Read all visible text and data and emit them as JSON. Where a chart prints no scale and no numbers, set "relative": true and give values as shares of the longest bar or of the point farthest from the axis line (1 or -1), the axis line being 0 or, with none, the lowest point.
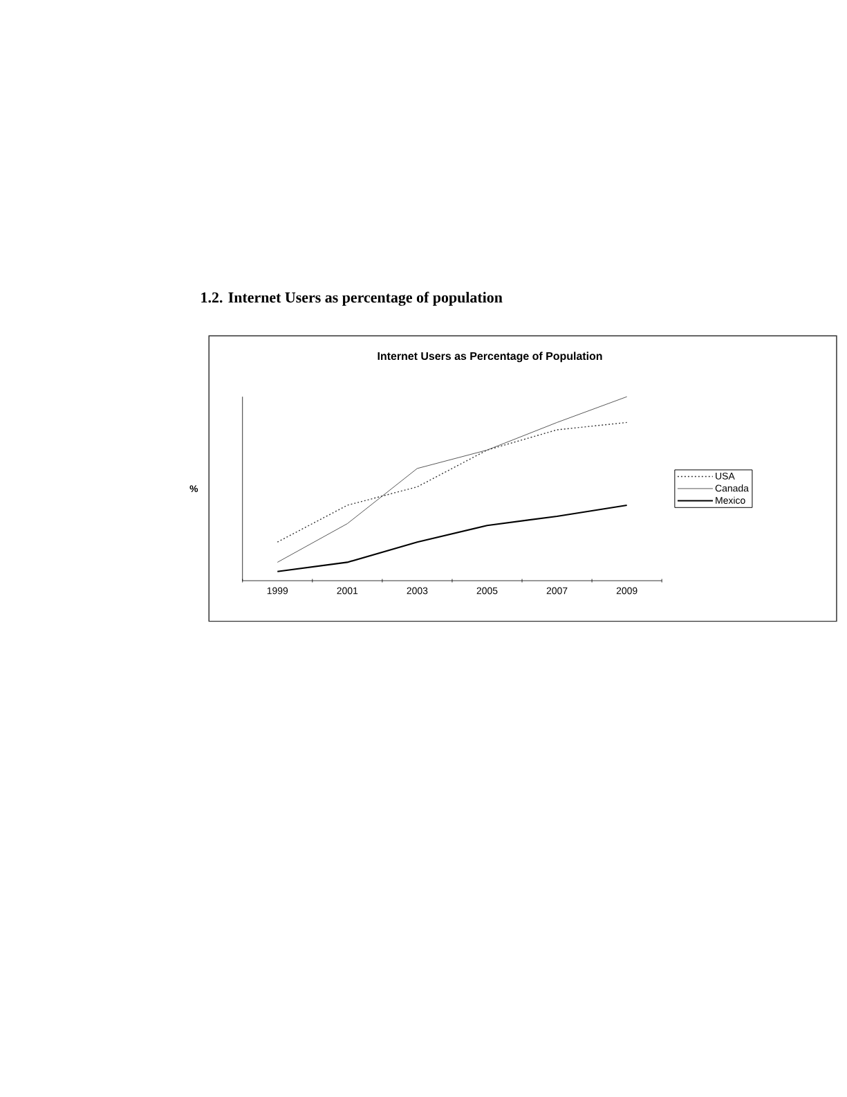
{
  "chart_data": {
    "type": "line",
    "title": "Internet Users as Percentage of Population",
    "annotations": [
      "1.2.     Internet Users as percentage of population"
    ],
    "ylabel": "%",
    "relative": true,
    "categories": [
      "1999",
      "2001",
      "2003",
      "2005",
      "2007",
      "2009"
    ],
    "series": [
      {
        "name": "USA",
        "color": "#333333",
        "line_style": "dotted",
        "values": [
          0.21,
          0.41,
          0.51,
          0.71,
          0.82,
          0.86
        ]
      },
      {
        "name": "Canada",
        "color": "#444444",
        "line_style": "solid",
        "values": [
          0.1,
          0.31,
          0.61,
          0.71,
          0.86,
          1
        ]
      },
      {
        "name": "Mexico",
        "color": "#000000",
        "line_style": "solid",
        "values": [
          0.05,
          0.1,
          0.21,
          0.3,
          0.35,
          0.41
        ]
      }
    ],
    "legend": "right",
    "grid": false,
    "marker": "none"
  }
}
